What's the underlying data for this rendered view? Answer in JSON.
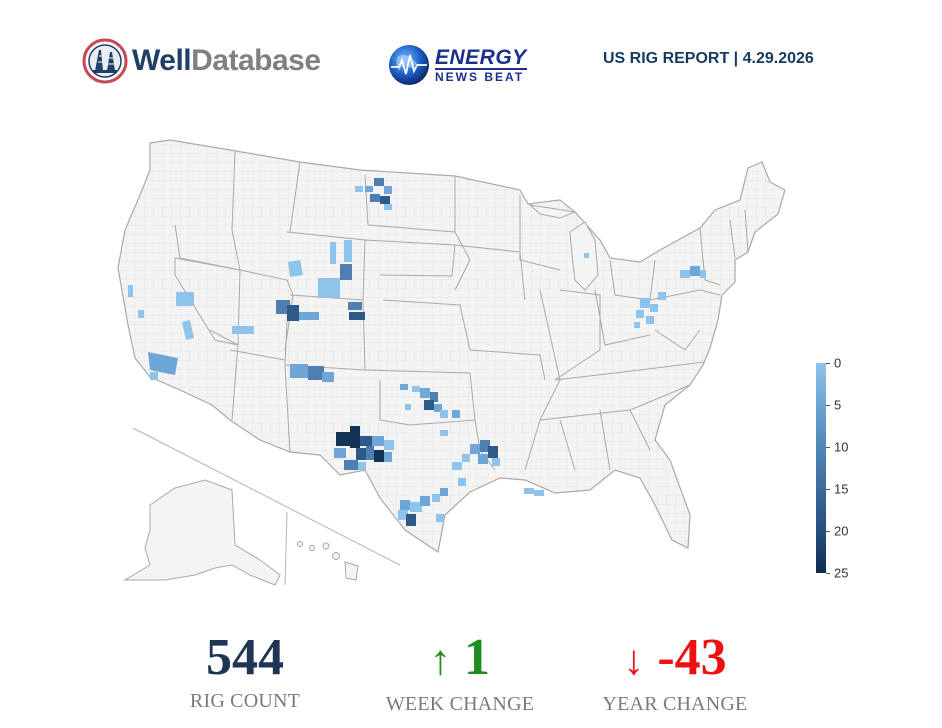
{
  "header": {
    "welldatabase": {
      "part1": "Well",
      "part2": "Database"
    },
    "energy_news_beat": {
      "line1": "ENERGY",
      "line2": "NEWS BEAT"
    },
    "report_title": "US RIG REPORT | 4.29.2026"
  },
  "legend": {
    "labels": [
      "0",
      "5",
      "10",
      "15",
      "20",
      "25"
    ],
    "min": 0,
    "max": 25,
    "color_low": "#8ec4ec",
    "color_high": "#0f2d4c"
  },
  "stats": {
    "rig_count": {
      "value": "544",
      "label": "RIG COUNT"
    },
    "week_change": {
      "arrow": "↑",
      "value": "1",
      "label": "WEEK CHANGE",
      "color": "#1f8c1f"
    },
    "year_change": {
      "arrow": "↓",
      "value": "-43",
      "label": "YEAR CHANGE",
      "color": "#ee1111"
    }
  },
  "colors": {
    "land": "#f4f4f4",
    "border": "#a9a9a9",
    "shade1": "#8ec4ec",
    "shade2": "#6ea6d8",
    "shade3": "#4f7fb0",
    "shade4": "#2e5a88",
    "shade5": "#123456"
  }
}
